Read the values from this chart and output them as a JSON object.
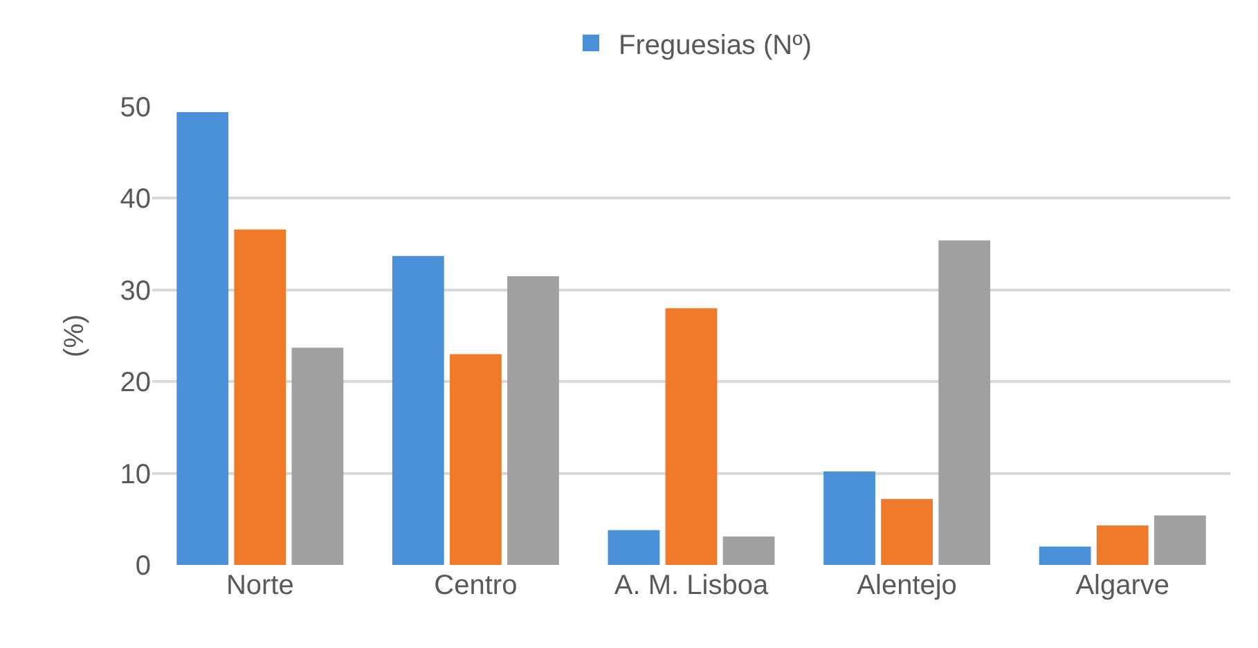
{
  "chart_data": {
    "type": "bar",
    "ylabel": "(%)",
    "categories": [
      "Norte",
      "Centro",
      "A. M. Lisboa",
      "Alentejo",
      "Algarve"
    ],
    "series": [
      {
        "name": "Freguesias (Nº)",
        "color": "#4a90d9",
        "values": [
          49.4,
          33.7,
          3.8,
          10.2,
          2.0
        ]
      },
      {
        "color": "#ef7a2a",
        "values": [
          36.6,
          23.0,
          28.0,
          7.2,
          4.3
        ]
      },
      {
        "color": "#a0a0a0",
        "values": [
          23.7,
          31.5,
          3.1,
          35.4,
          5.4
        ]
      }
    ],
    "ylim": [
      0,
      50
    ],
    "yticks": [
      0,
      10,
      20,
      30,
      40,
      50
    ],
    "grid": "y",
    "legend": "top"
  }
}
